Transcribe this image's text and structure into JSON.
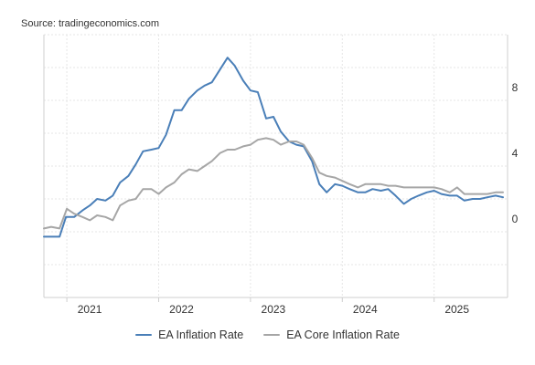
{
  "source": "Source: tradingeconomics.com",
  "colors": {
    "ea_inflation": "#4a7fb8",
    "ea_core": "#a6a6a6",
    "grid": "#e6e6e6",
    "axis": "#cfcfcf"
  },
  "chart_data": {
    "type": "line",
    "title": "",
    "xlabel": "",
    "ylabel": "",
    "x_ticks": [
      "2021",
      "2022",
      "2023",
      "2024",
      "2025"
    ],
    "y_ticks": [
      "8",
      "4",
      "0"
    ],
    "xlim": [
      2020.75,
      2025.8
    ],
    "ylim": [
      -4,
      12
    ],
    "grid": true,
    "legend_position": "bottom",
    "series": [
      {
        "name": "EA Inflation Rate",
        "color": "#4a7fb8",
        "x": [
          2020.75,
          2020.92,
          2020.99,
          2021.08,
          2021.17,
          2021.25,
          2021.33,
          2021.42,
          2021.5,
          2021.58,
          2021.67,
          2021.75,
          2021.83,
          2021.92,
          2022.0,
          2022.08,
          2022.17,
          2022.25,
          2022.33,
          2022.42,
          2022.5,
          2022.58,
          2022.67,
          2022.75,
          2022.83,
          2022.92,
          2023.0,
          2023.08,
          2023.17,
          2023.25,
          2023.33,
          2023.42,
          2023.5,
          2023.58,
          2023.67,
          2023.75,
          2023.83,
          2023.92,
          2024.0,
          2024.08,
          2024.17,
          2024.25,
          2024.33,
          2024.42,
          2024.5,
          2024.58,
          2024.67,
          2024.75,
          2024.83,
          2024.92,
          2025.0,
          2025.08,
          2025.17,
          2025.25,
          2025.33,
          2025.42,
          2025.5,
          2025.58,
          2025.67,
          2025.75
        ],
        "y": [
          -0.3,
          -0.3,
          0.9,
          0.9,
          1.3,
          1.6,
          2.0,
          1.9,
          2.2,
          3.0,
          3.4,
          4.1,
          4.9,
          5.0,
          5.1,
          5.9,
          7.4,
          7.4,
          8.1,
          8.6,
          8.9,
          9.1,
          9.9,
          10.6,
          10.1,
          9.2,
          8.6,
          8.5,
          6.9,
          7.0,
          6.1,
          5.5,
          5.3,
          5.2,
          4.3,
          2.9,
          2.4,
          2.9,
          2.8,
          2.6,
          2.4,
          2.4,
          2.6,
          2.5,
          2.6,
          2.2,
          1.7,
          2.0,
          2.2,
          2.4,
          2.5,
          2.3,
          2.2,
          2.2,
          1.9,
          2.0,
          2.0,
          2.1,
          2.2,
          2.1
        ]
      },
      {
        "name": "EA Core Inflation Rate",
        "color": "#a6a6a6",
        "x": [
          2020.75,
          2020.83,
          2020.92,
          2021.0,
          2021.08,
          2021.17,
          2021.25,
          2021.33,
          2021.42,
          2021.5,
          2021.58,
          2021.67,
          2021.75,
          2021.83,
          2021.92,
          2022.0,
          2022.08,
          2022.17,
          2022.25,
          2022.33,
          2022.42,
          2022.5,
          2022.58,
          2022.67,
          2022.75,
          2022.83,
          2022.92,
          2023.0,
          2023.08,
          2023.17,
          2023.25,
          2023.33,
          2023.42,
          2023.5,
          2023.58,
          2023.67,
          2023.75,
          2023.83,
          2023.92,
          2024.0,
          2024.08,
          2024.17,
          2024.25,
          2024.33,
          2024.42,
          2024.5,
          2024.58,
          2024.67,
          2024.75,
          2024.83,
          2024.92,
          2025.0,
          2025.08,
          2025.17,
          2025.25,
          2025.33,
          2025.42,
          2025.5,
          2025.58,
          2025.67,
          2025.75
        ],
        "y": [
          0.2,
          0.3,
          0.2,
          1.4,
          1.1,
          0.9,
          0.7,
          1.0,
          0.9,
          0.7,
          1.6,
          1.9,
          2.0,
          2.6,
          2.6,
          2.3,
          2.7,
          3.0,
          3.5,
          3.8,
          3.7,
          4.0,
          4.3,
          4.8,
          5.0,
          5.0,
          5.2,
          5.3,
          5.6,
          5.7,
          5.6,
          5.3,
          5.5,
          5.5,
          5.3,
          4.5,
          3.6,
          3.4,
          3.3,
          3.1,
          2.9,
          2.7,
          2.9,
          2.9,
          2.9,
          2.8,
          2.8,
          2.7,
          2.7,
          2.7,
          2.7,
          2.7,
          2.6,
          2.4,
          2.7,
          2.3,
          2.3,
          2.3,
          2.3,
          2.4,
          2.4
        ]
      }
    ]
  }
}
